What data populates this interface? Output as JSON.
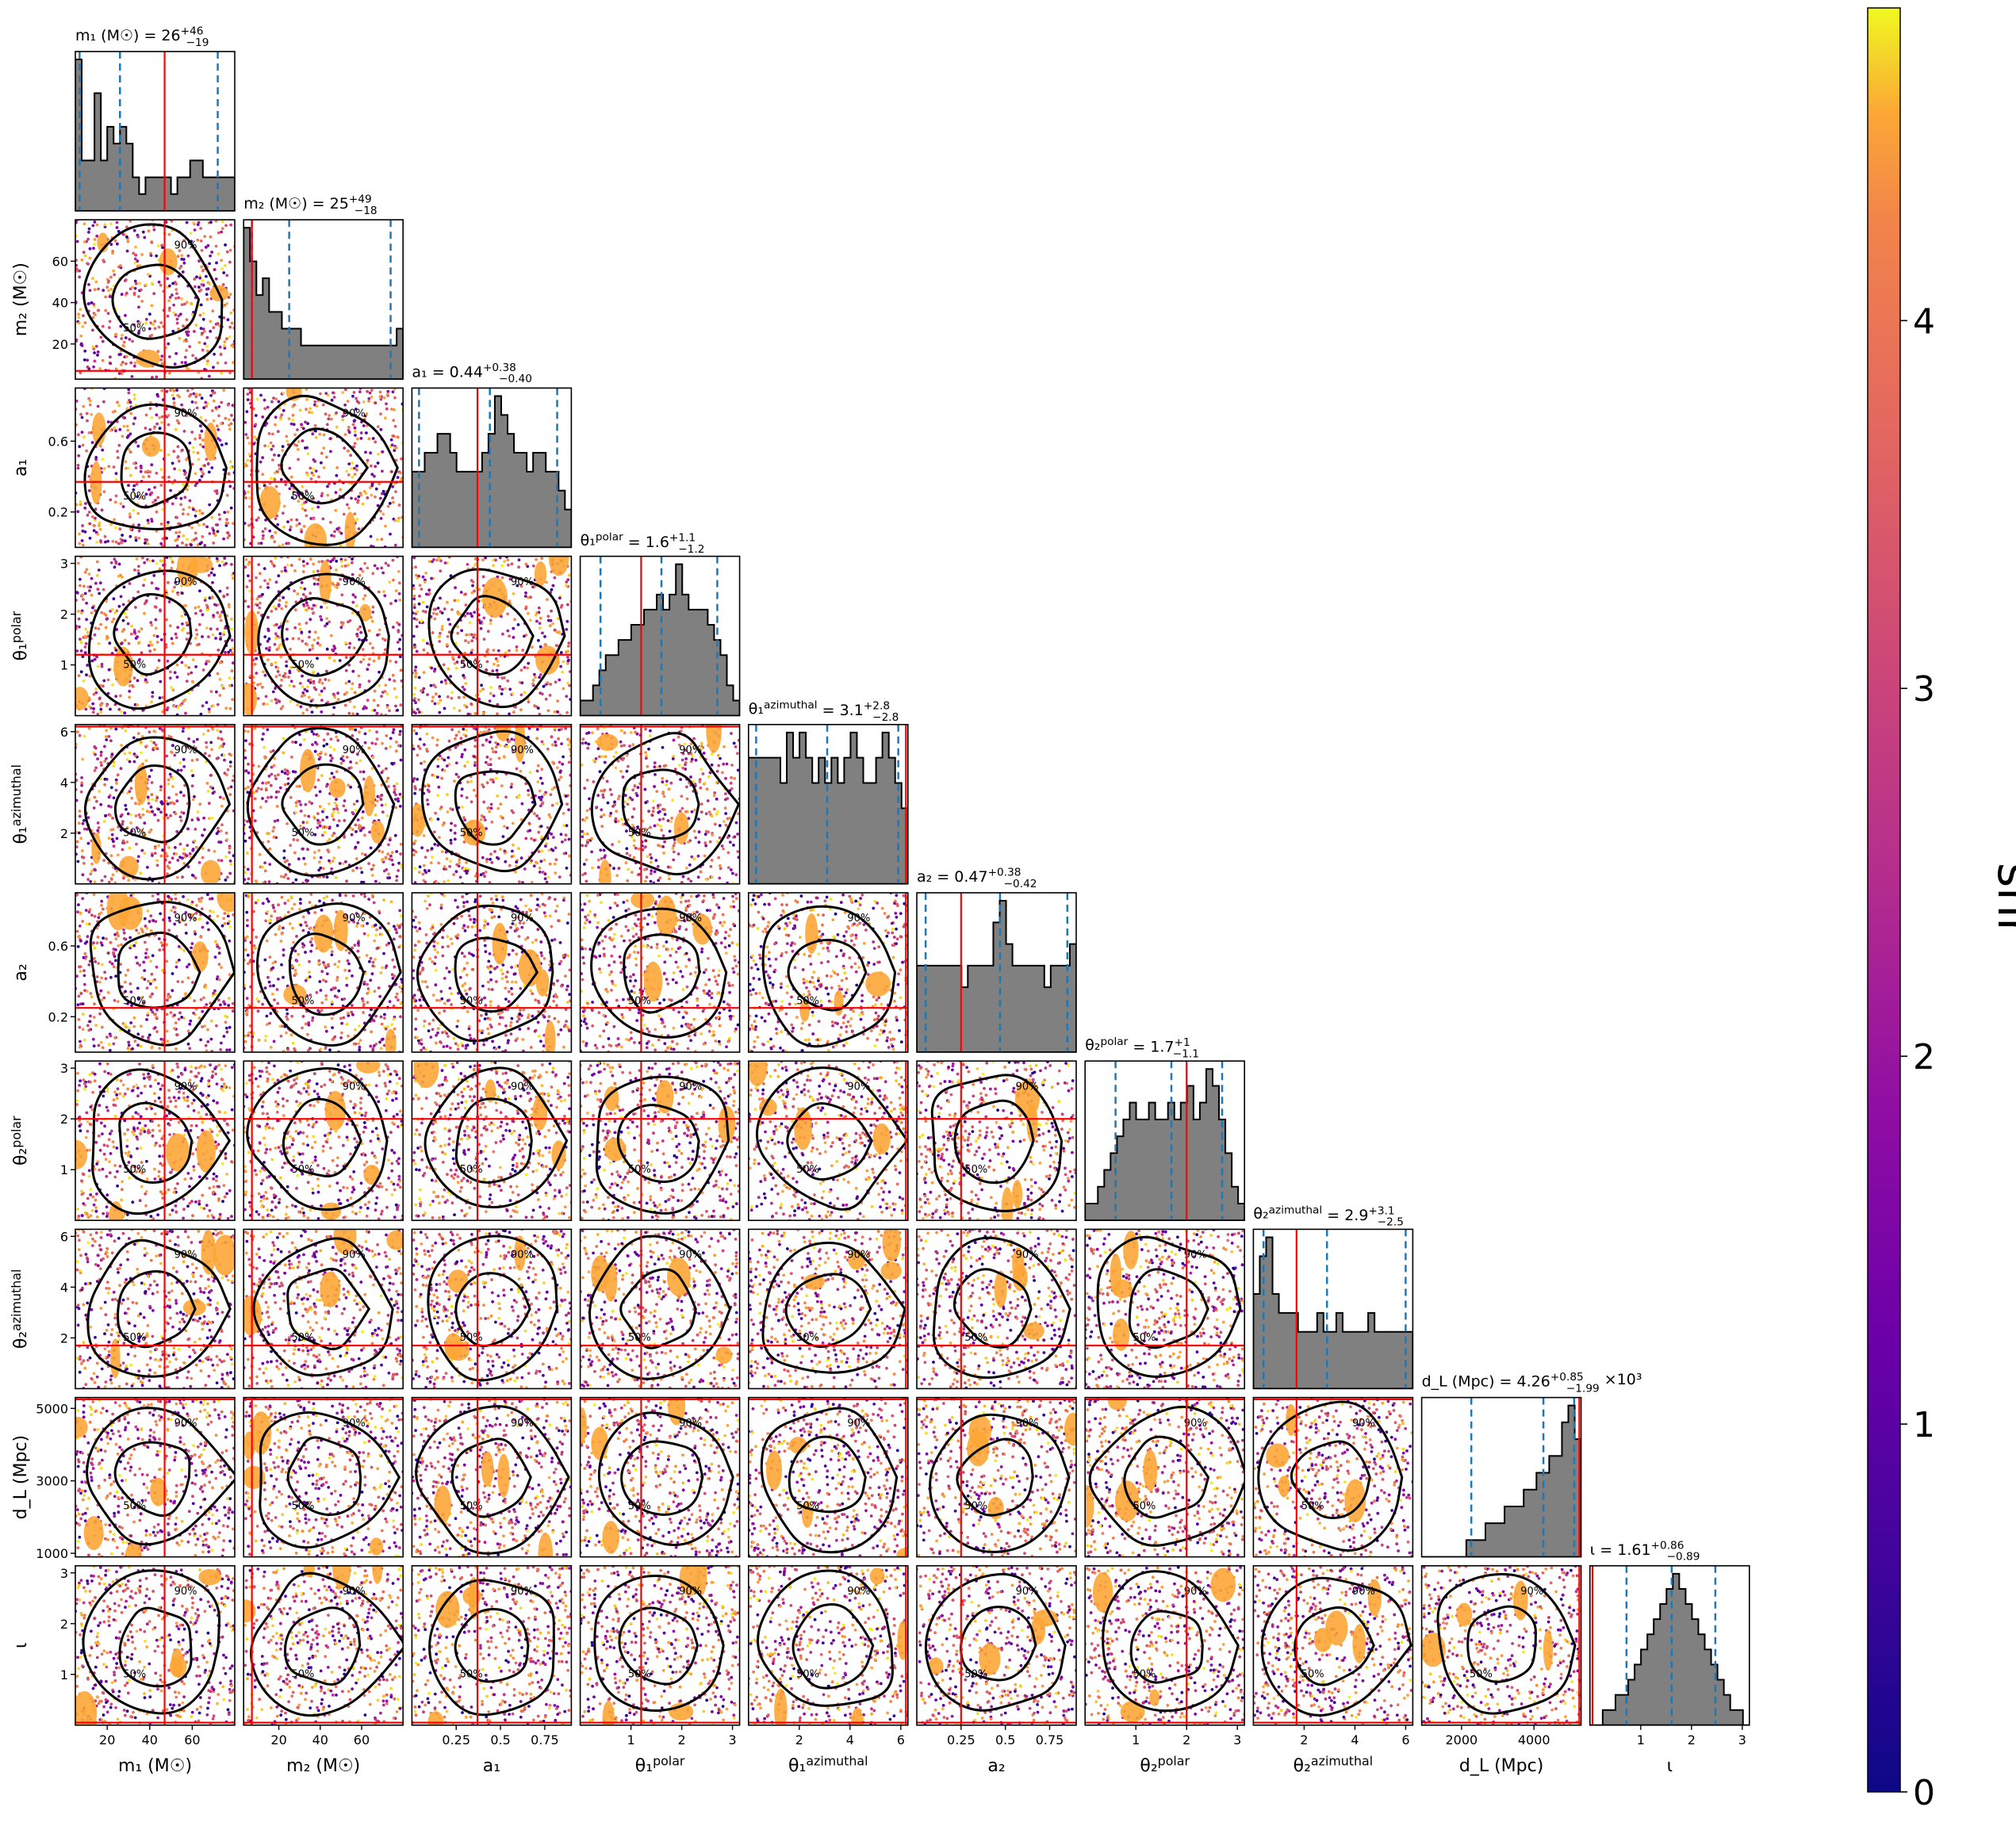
{
  "chart_data": {
    "type": "scatter",
    "subtype": "corner-plot",
    "parameters": [
      {
        "key": "m1",
        "label": "m₁ (M☉)",
        "title": "m₁ (M☉) = 26",
        "title_sup": "+46",
        "title_sub": "−19",
        "range": [
          5,
          80
        ],
        "ticks": [
          20,
          40,
          60
        ],
        "truth": 47,
        "quantiles": [
          7,
          26,
          72
        ],
        "hist": [
          9,
          3,
          3,
          7,
          3,
          5,
          4,
          5,
          4,
          2,
          1,
          2,
          2,
          2,
          2,
          1,
          2,
          2,
          3,
          3,
          2,
          2,
          2,
          2,
          2
        ]
      },
      {
        "key": "m2",
        "label": "m₂ (M☉)",
        "title": "m₂ (M☉) = 25",
        "title_sup": "+49",
        "title_sub": "−18",
        "range": [
          3,
          80
        ],
        "ticks": [
          20,
          40,
          60
        ],
        "truth": 7,
        "quantiles": [
          7,
          25,
          74
        ],
        "hist": [
          9,
          7,
          5,
          6,
          4,
          4,
          3,
          3,
          3,
          2,
          2,
          2,
          2,
          2,
          2,
          2,
          2,
          2,
          2,
          2,
          2,
          2,
          2,
          2,
          3
        ]
      },
      {
        "key": "a1",
        "label": "a₁",
        "title": "a₁ = 0.44",
        "title_sup": "+0.38",
        "title_sub": "−0.40",
        "range": [
          0,
          0.9
        ],
        "ticks": [
          0.2,
          0.6
        ],
        "xticks": [
          0.25,
          0.5,
          0.75
        ],
        "truth": 0.37,
        "quantiles": [
          0.04,
          0.44,
          0.82
        ],
        "hist": [
          4,
          4,
          5,
          5,
          6,
          6,
          5,
          4,
          4,
          4,
          4,
          5,
          6,
          8,
          7,
          6,
          5,
          5,
          4,
          5,
          5,
          4,
          4,
          3,
          2
        ]
      },
      {
        "key": "theta1p",
        "label": "θ₁^polar",
        "title": "θ₁^polar = 1.6",
        "title_sup": "+1.1",
        "title_sub": "−1.2",
        "range": [
          0,
          3.14
        ],
        "ticks": [
          1,
          2,
          3
        ],
        "truth": 1.2,
        "quantiles": [
          0.4,
          1.6,
          2.7
        ],
        "hist": [
          1,
          1,
          2,
          3,
          4,
          4,
          5,
          5,
          6,
          6,
          7,
          7,
          8,
          7,
          8,
          10,
          8,
          7,
          7,
          7,
          6,
          5,
          4,
          2,
          1
        ]
      },
      {
        "key": "theta1a",
        "label": "θ₁^azimuthal",
        "title": "θ₁^azimuthal = 3.1",
        "title_sup": "+2.8",
        "title_sub": "−2.8",
        "range": [
          0,
          6.28
        ],
        "ticks": [
          2,
          4,
          6
        ],
        "truth": 6.2,
        "quantiles": [
          0.3,
          3.1,
          5.9
        ],
        "hist": [
          5,
          5,
          5,
          5,
          5,
          4,
          6,
          5,
          6,
          5,
          4,
          5,
          4,
          5,
          4,
          5,
          6,
          5,
          4,
          4,
          5,
          6,
          5,
          4,
          3
        ]
      },
      {
        "key": "a2",
        "label": "a₂",
        "title": "a₂ = 0.47",
        "title_sup": "+0.38",
        "title_sub": "−0.42",
        "range": [
          0,
          0.9
        ],
        "ticks": [
          0.2,
          0.6
        ],
        "xticks": [
          0.25,
          0.5,
          0.75
        ],
        "truth": 0.25,
        "quantiles": [
          0.05,
          0.47,
          0.85
        ],
        "hist": [
          4,
          4,
          4,
          4,
          4,
          4,
          4,
          3,
          4,
          4,
          4,
          4,
          6,
          7,
          5,
          4,
          4,
          4,
          4,
          4,
          3,
          4,
          4,
          4,
          5
        ]
      },
      {
        "key": "theta2p",
        "label": "θ₂^polar",
        "title": "θ₂^polar = 1.7",
        "title_sup": "+1",
        "title_sub": "−1.1",
        "range": [
          0,
          3.14
        ],
        "ticks": [
          1,
          2,
          3
        ],
        "truth": 2.0,
        "quantiles": [
          0.6,
          1.7,
          2.7
        ],
        "hist": [
          1,
          1,
          2,
          3,
          4,
          5,
          6,
          7,
          6,
          6,
          7,
          6,
          6,
          7,
          6,
          7,
          8,
          6,
          7,
          9,
          8,
          6,
          4,
          2,
          1
        ]
      },
      {
        "key": "theta2a",
        "label": "θ₂^azimuthal",
        "title": "θ₂^azimuthal = 2.9",
        "title_sup": "+3.1",
        "title_sub": "−2.5",
        "range": [
          0,
          6.28
        ],
        "ticks": [
          2,
          4,
          6
        ],
        "truth": 1.7,
        "quantiles": [
          0.4,
          2.9,
          6.0
        ],
        "hist": [
          5,
          7,
          8,
          5,
          4,
          4,
          4,
          3,
          3,
          3,
          4,
          3,
          3,
          4,
          3,
          3,
          3,
          3,
          4,
          3,
          3,
          3,
          3,
          3,
          3
        ]
      },
      {
        "key": "dL",
        "label": "d_L (Mpc)",
        "title": "d_L (Mpc) = 4.26",
        "title_sup": "+0.85",
        "title_sub": "−1.99",
        "title_suffix": "×10³",
        "range": [
          900,
          5300
        ],
        "ticks": [
          1000,
          3000,
          5000
        ],
        "xticks": [
          2000,
          4000
        ],
        "truth": 5250,
        "quantiles": [
          2270,
          4260,
          5110
        ],
        "hist": [
          0,
          0,
          0,
          0,
          0,
          0,
          0,
          1,
          1,
          1,
          2,
          2,
          2,
          3,
          3,
          3,
          4,
          4,
          5,
          5,
          6,
          6,
          8,
          9,
          7
        ]
      },
      {
        "key": "iota",
        "label": "ι",
        "title": "ι = 1.61",
        "title_sup": "+0.86",
        "title_sub": "−0.89",
        "range": [
          0,
          3.14
        ],
        "ticks": [
          1,
          2,
          3
        ],
        "truth": 0.05,
        "quantiles": [
          0.72,
          1.61,
          2.47
        ],
        "hist": [
          0,
          0,
          1,
          1,
          2,
          2,
          3,
          4,
          5,
          6,
          7,
          8,
          9,
          10,
          9,
          8,
          7,
          6,
          5,
          4,
          3,
          2,
          1,
          1,
          0
        ]
      }
    ],
    "contour_labels": [
      "50%",
      "90%"
    ],
    "colorbar": {
      "label": "snr",
      "min": 0,
      "max": 4.85,
      "ticks": [
        0,
        1,
        2,
        3,
        4
      ],
      "colormap": "plasma"
    },
    "colors": {
      "hist_fill": "#808080",
      "quantile_line": "#1f77b4",
      "truth_line": "#ff0000",
      "contour": "#000000"
    }
  }
}
